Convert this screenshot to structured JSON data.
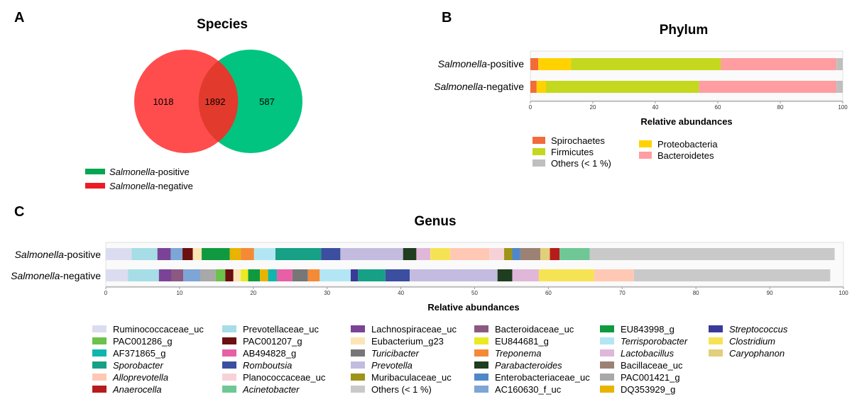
{
  "panels": {
    "A": {
      "letter": "A",
      "title": "Species",
      "venn": {
        "left_only": "1018",
        "overlap": "1892",
        "right_only": "587"
      },
      "legend": [
        {
          "italic": "Salmonella",
          "rest": "-positive",
          "color": "#00a651"
        },
        {
          "italic": "Salmonella",
          "rest": "-negative",
          "color": "#ed1c24"
        }
      ]
    },
    "B": {
      "letter": "B",
      "title": "Phylum",
      "xlabel": "Relative abundances"
    },
    "C": {
      "letter": "C",
      "title": "Genus",
      "xlabel": "Relative abundances"
    }
  },
  "chart_data": [
    {
      "type": "venn",
      "title": "Species",
      "sets": [
        {
          "name": "Salmonella-positive",
          "color": "#00c07f"
        },
        {
          "name": "Salmonella-negative",
          "color": "#ff4d4d"
        }
      ],
      "regions": {
        "negative_only": 1018,
        "shared": 1892,
        "positive_only": 587
      }
    },
    {
      "type": "bar",
      "orientation": "horizontal-stacked",
      "title": "Phylum",
      "xlabel": "Relative abundances",
      "xlim": [
        0,
        100
      ],
      "xticks": [
        0,
        20,
        40,
        60,
        80,
        100
      ],
      "categories": [
        {
          "italic": "Salmonella",
          "rest": "-positive"
        },
        {
          "italic": "Salmonella",
          "rest": "-negative"
        }
      ],
      "series": [
        {
          "name": "Spirochaetes",
          "color": "#f26b3a",
          "values": [
            2.5,
            2
          ]
        },
        {
          "name": "Proteobacteria",
          "color": "#ffd200",
          "values": [
            10.5,
            3
          ]
        },
        {
          "name": "Firmicutes",
          "color": "#c4d81e",
          "values": [
            48,
            49
          ]
        },
        {
          "name": "Bacteroidetes",
          "color": "#ff9da0",
          "values": [
            37,
            44
          ]
        },
        {
          "name": "Others (< 1 %)",
          "color": "#bfbfbf",
          "values": [
            2,
            2
          ]
        }
      ],
      "legend_order": [
        "Spirochaetes",
        "Proteobacteria",
        "Firmicutes",
        "Bacteroidetes",
        "Others (< 1 %)"
      ]
    },
    {
      "type": "bar",
      "orientation": "horizontal-stacked",
      "title": "Genus",
      "xlabel": "Relative abundances",
      "xlim": [
        0,
        100
      ],
      "xticks": [
        0,
        10,
        20,
        30,
        40,
        50,
        60,
        70,
        80,
        90,
        100
      ],
      "categories": [
        {
          "italic": "Salmonella",
          "rest": "-positive"
        },
        {
          "italic": "Salmonella",
          "rest": "-negative"
        }
      ],
      "segments": [
        [
          {
            "name": "Ruminococcaceae_uc",
            "value": 3.5
          },
          {
            "name": "Prevotellaceae_uc",
            "value": 3.5
          },
          {
            "name": "Lachnospiraceae_uc",
            "value": 1.8
          },
          {
            "name": "AC160630_f_uc",
            "value": 1.6
          },
          {
            "name": "PAC001207_g",
            "value": 1.4
          },
          {
            "name": "Eubacterium_g23",
            "value": 1.2
          },
          {
            "name": "EU843998_g",
            "value": 3.8
          },
          {
            "name": "DQ353929_g",
            "value": 1.5
          },
          {
            "name": "Treponema",
            "value": 1.8
          },
          {
            "name": "Terrisporobacter",
            "value": 2.9
          },
          {
            "name": "Sporobacter",
            "value": 6.2
          },
          {
            "name": "Romboutsia",
            "value": 2.6
          },
          {
            "name": "Prevotella",
            "value": 8.5
          },
          {
            "name": "Parabacteroides",
            "value": 1.8
          },
          {
            "name": "Lactobacillus",
            "value": 1.9
          },
          {
            "name": "Clostridium",
            "value": 2.7
          },
          {
            "name": "Alloprevotella",
            "value": 5.3
          },
          {
            "name": "Planococcaceae_uc",
            "value": 2.0
          },
          {
            "name": "Muribaculaceae_uc",
            "value": 1.1
          },
          {
            "name": "Enterobacteriaceae_uc",
            "value": 1.1
          },
          {
            "name": "Bacillaceae_uc",
            "value": 2.7
          },
          {
            "name": "Caryophanon",
            "value": 1.3
          },
          {
            "name": "Anaerocella",
            "value": 1.3
          },
          {
            "name": "Acinetobacter",
            "value": 4.1
          },
          {
            "name": "Others (< 1 %)",
            "value": 33.2
          }
        ],
        [
          {
            "name": "Ruminococcaceae_uc",
            "value": 3.0
          },
          {
            "name": "Prevotellaceae_uc",
            "value": 4.2
          },
          {
            "name": "Lachnospiraceae_uc",
            "value": 1.7
          },
          {
            "name": "Bacteroidaceae_uc",
            "value": 1.6
          },
          {
            "name": "AC160630_f_uc",
            "value": 2.3
          },
          {
            "name": "PAC001421_g",
            "value": 2.1
          },
          {
            "name": "PAC001286_g",
            "value": 1.3
          },
          {
            "name": "PAC001207_g",
            "value": 1.1
          },
          {
            "name": "Eubacterium_g23",
            "value": 1.0
          },
          {
            "name": "EU844681_g",
            "value": 1.0
          },
          {
            "name": "EU843998_g",
            "value": 1.6
          },
          {
            "name": "DQ353929_g",
            "value": 1.1
          },
          {
            "name": "AF371865_g",
            "value": 1.2
          },
          {
            "name": "AB494828_g",
            "value": 2.1
          },
          {
            "name": "Turicibacter",
            "value": 2.1
          },
          {
            "name": "Treponema",
            "value": 1.6
          },
          {
            "name": "Terrisporobacter",
            "value": 4.2
          },
          {
            "name": "Streptococcus",
            "value": 1.0
          },
          {
            "name": "Sporobacter",
            "value": 3.7
          },
          {
            "name": "Romboutsia",
            "value": 3.3
          },
          {
            "name": "Prevotella",
            "value": 11.9
          },
          {
            "name": "Parabacteroides",
            "value": 2.0
          },
          {
            "name": "Lactobacillus",
            "value": 3.6
          },
          {
            "name": "Clostridium",
            "value": 7.5
          },
          {
            "name": "Alloprevotella",
            "value": 5.4
          },
          {
            "name": "Others (< 1 %)",
            "value": 26.6
          }
        ]
      ],
      "legend": [
        {
          "name": "Ruminococcaceae_uc",
          "color": "#dcdcf0",
          "italic": false
        },
        {
          "name": "PAC001286_g",
          "color": "#6cc24a",
          "italic": false
        },
        {
          "name": "AF371865_g",
          "color": "#10b6ad",
          "italic": false
        },
        {
          "name": "Sporobacter",
          "color": "#16a085",
          "italic": true
        },
        {
          "name": "Alloprevotella",
          "color": "#ffc8b4",
          "italic": true
        },
        {
          "name": "Anaerocella",
          "color": "#b71c1c",
          "italic": true
        },
        {
          "name": "Prevotellaceae_uc",
          "color": "#a6dde6",
          "italic": false
        },
        {
          "name": "PAC001207_g",
          "color": "#6b0f0f",
          "italic": false
        },
        {
          "name": "AB494828_g",
          "color": "#e75fa5",
          "italic": false
        },
        {
          "name": "Romboutsia",
          "color": "#3b4ea0",
          "italic": true
        },
        {
          "name": "Planococcaceae_uc",
          "color": "#f6d2d6",
          "italic": false
        },
        {
          "name": "Acinetobacter",
          "color": "#6fc796",
          "italic": true
        },
        {
          "name": "Lachnospiraceae_uc",
          "color": "#7b4397",
          "italic": false
        },
        {
          "name": "Eubacterium_g23",
          "color": "#fbe5b4",
          "italic": false
        },
        {
          "name": "Turicibacter",
          "color": "#777777",
          "italic": true
        },
        {
          "name": "Prevotella",
          "color": "#c3bce0",
          "italic": true
        },
        {
          "name": "Muribaculaceae_uc",
          "color": "#9d9419",
          "italic": false
        },
        {
          "name": "Others (< 1 %)",
          "color": "#c9c9c9",
          "italic": false
        },
        {
          "name": "Bacteroidaceae_uc",
          "color": "#8c5a80",
          "italic": false
        },
        {
          "name": "EU844681_g",
          "color": "#eaea24",
          "italic": false
        },
        {
          "name": "Treponema",
          "color": "#f58a36",
          "italic": true
        },
        {
          "name": "Parabacteroides",
          "color": "#1f3d1f",
          "italic": true
        },
        {
          "name": "Enterobacteriaceae_uc",
          "color": "#4f88c8",
          "italic": false
        },
        {
          "name": "AC160630_f_uc",
          "color": "#7da6d6",
          "italic": false
        },
        {
          "name": "EU843998_g",
          "color": "#0f9a3f",
          "italic": false
        },
        {
          "name": "Terrisporobacter",
          "color": "#b3e6f4",
          "italic": true
        },
        {
          "name": "Lactobacillus",
          "color": "#e1b7d9",
          "italic": true
        },
        {
          "name": "Bacillaceae_uc",
          "color": "#9c8274",
          "italic": false
        },
        {
          "name": "PAC001421_g",
          "color": "#a8a8a8",
          "italic": false
        },
        {
          "name": "DQ353929_g",
          "color": "#e8b400",
          "italic": false
        },
        {
          "name": "Streptococcus",
          "color": "#3a3a99",
          "italic": true
        },
        {
          "name": "Clostridium",
          "color": "#f6e354",
          "italic": true
        },
        {
          "name": "Caryophanon",
          "color": "#e2cf7a",
          "italic": true
        }
      ]
    }
  ]
}
